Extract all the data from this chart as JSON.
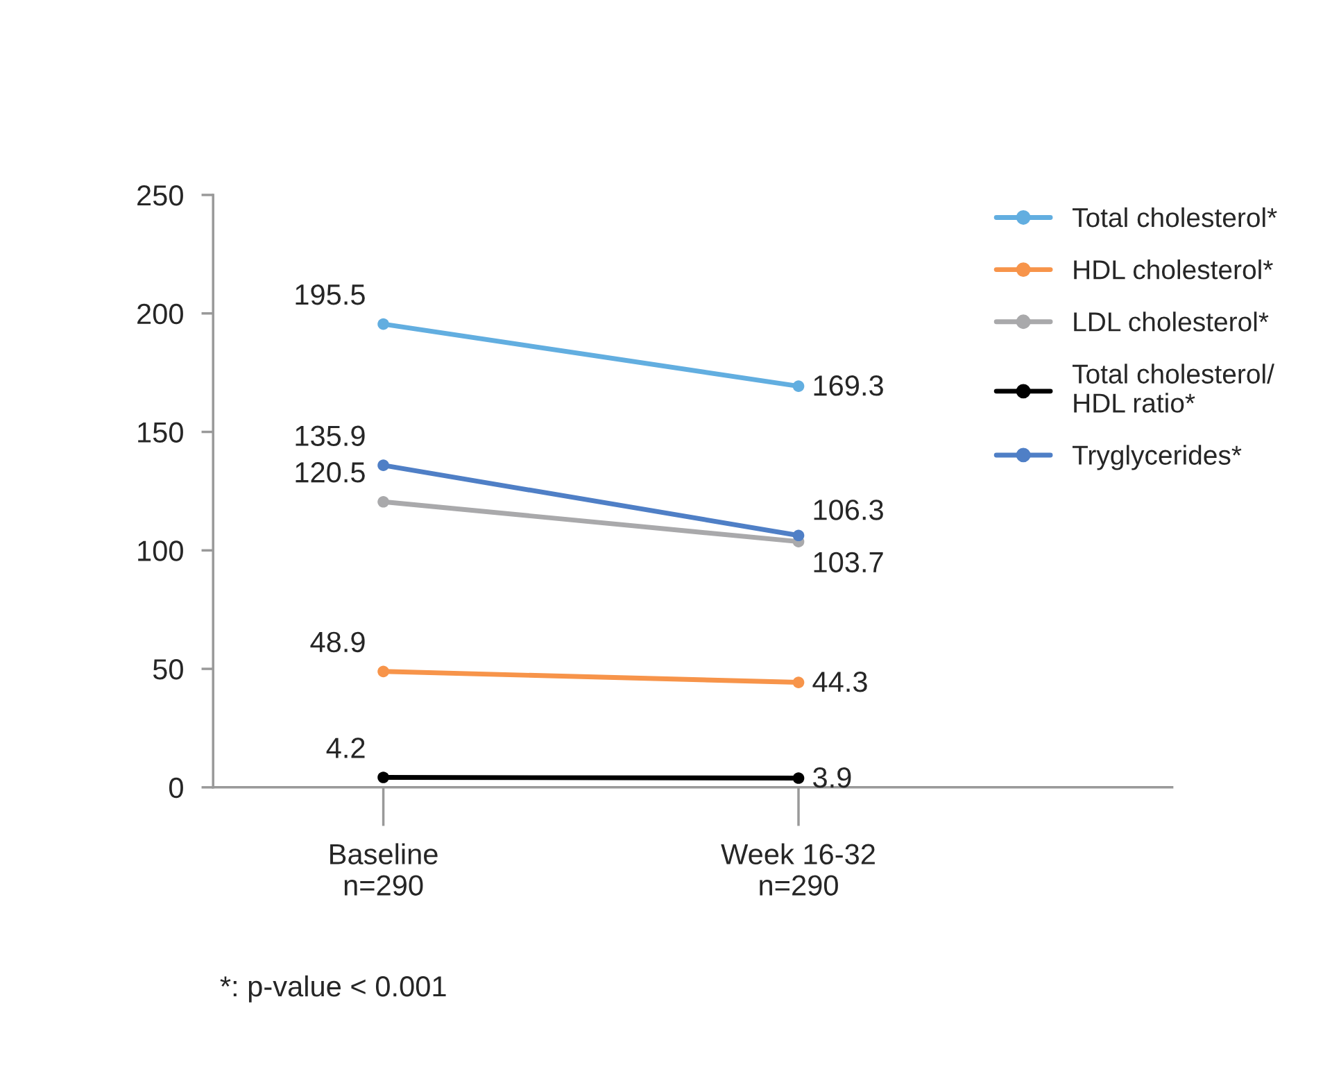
{
  "chart_data": {
    "type": "line",
    "categories": [
      "Baseline\nn=290",
      "Week 16-32\nn=290"
    ],
    "series": [
      {
        "name": "Total cholesterol*",
        "color": "#62aee0",
        "values": [
          195.5,
          169.3
        ]
      },
      {
        "name": "HDL cholesterol*",
        "color": "#f7944a",
        "values": [
          48.9,
          44.3
        ]
      },
      {
        "name": "LDL cholesterol*",
        "color": "#a9a9ab",
        "values": [
          120.5,
          103.7
        ]
      },
      {
        "name": "Total cholesterol/\nHDL ratio*",
        "color": "#000000",
        "values": [
          4.2,
          3.9
        ]
      },
      {
        "name": "Tryglycerides*",
        "color": "#4f7fc6",
        "values": [
          135.9,
          106.3
        ]
      }
    ],
    "ylim": [
      0,
      250
    ],
    "yticks": [
      0,
      50,
      100,
      150,
      200,
      250
    ],
    "data_labels": true,
    "grid": false,
    "legend": "top right",
    "marker": "circle",
    "line_style": "solid",
    "annotations": [
      "*: p-value < 0.001"
    ]
  }
}
